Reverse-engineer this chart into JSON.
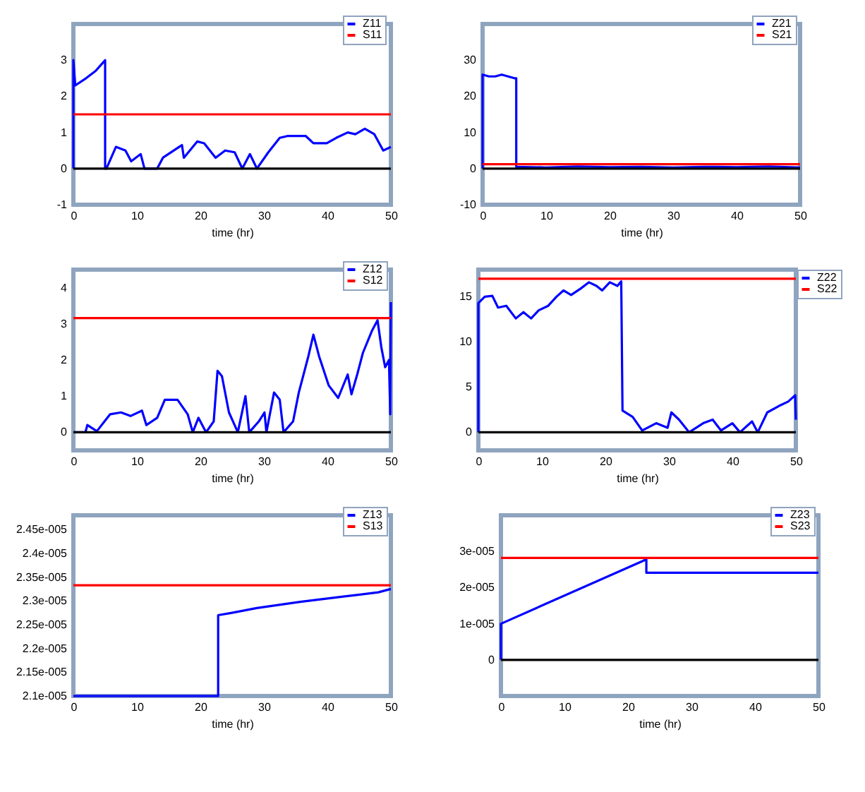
{
  "chart_data": [
    {
      "type": "line",
      "xlabel": "time (hr)",
      "xlim": [
        0,
        50
      ],
      "xticks": [
        0,
        10,
        20,
        30,
        40,
        50
      ],
      "ylim": [
        -1,
        4
      ],
      "yticks": [
        -1,
        0,
        1,
        2,
        3
      ],
      "legend": "top right",
      "ref_lines": [
        {
          "axis": "y",
          "value": 0,
          "color": "#000000"
        }
      ],
      "series": [
        {
          "name": "Z11",
          "color": "#0000ff",
          "x": [
            0,
            0,
            0.3,
            2,
            3.5,
            4.5,
            5,
            5,
            5.2,
            6.7,
            8.2,
            9.1,
            10.6,
            11.2,
            13.2,
            14.1,
            17.1,
            17.4,
            19.5,
            20.6,
            22.4,
            23.9,
            25.4,
            26.6,
            27.8,
            28.9,
            30.7,
            32.5,
            33.7,
            36.6,
            37.8,
            39.9,
            41.4,
            43.2,
            44.4,
            45.9,
            47.4,
            48.8,
            50
          ],
          "values": [
            0,
            3,
            2.3,
            2.5,
            2.7,
            2.9,
            3,
            0,
            0,
            0.6,
            0.5,
            0.2,
            0.4,
            0,
            0,
            0.3,
            0.65,
            0.3,
            0.75,
            0.7,
            0.3,
            0.5,
            0.45,
            0,
            0.4,
            0,
            0.45,
            0.85,
            0.9,
            0.9,
            0.7,
            0.7,
            0.85,
            1,
            0.95,
            1.1,
            0.95,
            0.5,
            0.6
          ]
        },
        {
          "name": "S11",
          "color": "#ff0000",
          "x": [
            0,
            50
          ],
          "values": [
            1.5,
            1.5
          ]
        }
      ]
    },
    {
      "type": "line",
      "xlabel": "time (hr)",
      "xlim": [
        0,
        50
      ],
      "xticks": [
        0,
        10,
        20,
        30,
        40,
        50
      ],
      "ylim": [
        -10,
        40
      ],
      "yticks": [
        -10,
        0,
        10,
        20,
        30
      ],
      "legend": "top right",
      "ref_lines": [
        {
          "axis": "y",
          "value": 0,
          "color": "#000000"
        }
      ],
      "series": [
        {
          "name": "Z21",
          "color": "#0000ff",
          "x": [
            0,
            0,
            1,
            2,
            3,
            4,
            5,
            5.3,
            5.3,
            10,
            15,
            20,
            25,
            30,
            35,
            40,
            45,
            50
          ],
          "values": [
            0,
            26,
            25.5,
            25.5,
            26,
            25.5,
            25,
            25,
            0.5,
            0.3,
            0.6,
            0.4,
            0.5,
            0.3,
            0.5,
            0.4,
            0.6,
            0.3
          ]
        },
        {
          "name": "S21",
          "color": "#ff0000",
          "x": [
            0,
            50
          ],
          "values": [
            1.2,
            1.2
          ]
        }
      ]
    },
    {
      "type": "line",
      "xlabel": "time (hr)",
      "xlim": [
        0,
        50
      ],
      "xticks": [
        0,
        10,
        20,
        30,
        40,
        50
      ],
      "ylim": [
        -0.5,
        4.5
      ],
      "yticks": [
        0,
        1,
        2,
        3,
        4
      ],
      "legend": "top right",
      "ref_lines": [
        {
          "axis": "y",
          "value": 0,
          "color": "#000000"
        }
      ],
      "series": [
        {
          "name": "Z12",
          "color": "#0000ff",
          "x": [
            0,
            1.9,
            2.2,
            3.7,
            4.9,
            5.8,
            7.5,
            9,
            10.8,
            11.5,
            13.2,
            14.4,
            16.4,
            18,
            18.8,
            19.7,
            20.9,
            22.1,
            22.7,
            23.4,
            24.5,
            25.9,
            27.1,
            27.7,
            29.2,
            30.1,
            30.4,
            31.6,
            32.5,
            33.1,
            34.6,
            35.5,
            37,
            37.8,
            38.7,
            40.2,
            41.7,
            43.2,
            43.8,
            44.7,
            45.6,
            47,
            47.9,
            48.5,
            49.1,
            49.7,
            49.9,
            50
          ],
          "values": [
            0,
            0,
            0.2,
            0.03,
            0.3,
            0.5,
            0.55,
            0.45,
            0.6,
            0.2,
            0.4,
            0.9,
            0.9,
            0.5,
            0,
            0.4,
            0,
            0.3,
            1.7,
            1.55,
            0.55,
            0,
            1,
            0,
            0.3,
            0.55,
            0,
            1.1,
            0.9,
            0,
            0.3,
            1.1,
            2.1,
            2.7,
            2.1,
            1.3,
            0.95,
            1.6,
            1.05,
            1.6,
            2.2,
            2.8,
            3.1,
            2.35,
            1.8,
            2,
            0.5,
            3.6
          ]
        },
        {
          "name": "S12",
          "color": "#ff0000",
          "x": [
            0,
            50
          ],
          "values": [
            3.16,
            3.16
          ]
        }
      ]
    },
    {
      "type": "line",
      "xlabel": "time (hr)",
      "xlim": [
        0,
        50
      ],
      "xticks": [
        0,
        10,
        20,
        30,
        40,
        50
      ],
      "ylim": [
        -2,
        18
      ],
      "yticks": [
        0,
        5,
        10,
        15
      ],
      "legend": "right",
      "ref_lines": [
        {
          "axis": "y",
          "value": 0,
          "color": "#000000"
        }
      ],
      "series": [
        {
          "name": "Z22",
          "color": "#0000ff",
          "x": [
            0,
            0,
            1,
            2.2,
            3.1,
            4.4,
            5.9,
            7.1,
            8.3,
            9.5,
            11,
            12.3,
            13.4,
            14.6,
            16.1,
            17.4,
            18.6,
            19.5,
            20.7,
            21.9,
            22.5,
            22.7,
            24.3,
            25.8,
            28,
            29.8,
            30.4,
            31.6,
            33.2,
            35.4,
            36.9,
            38.2,
            40,
            41.2,
            43.1,
            44,
            45.5,
            47.3,
            48.8,
            49.9,
            50
          ],
          "values": [
            0,
            14.3,
            15,
            15.1,
            13.8,
            14,
            12.6,
            13.3,
            12.6,
            13.5,
            14,
            15,
            15.7,
            15.2,
            15.9,
            16.6,
            16.2,
            15.7,
            16.6,
            16.2,
            16.7,
            2.4,
            1.7,
            0.2,
            1,
            0.5,
            2.2,
            1.4,
            0,
            1,
            1.4,
            0.2,
            1,
            0,
            1.2,
            0,
            2.2,
            2.9,
            3.4,
            4.1,
            1.4
          ]
        },
        {
          "name": "S22",
          "color": "#ff0000",
          "x": [
            0,
            50
          ],
          "values": [
            17,
            17
          ]
        }
      ]
    },
    {
      "type": "line",
      "xlabel": "time (hr)",
      "xlim": [
        0,
        50
      ],
      "xticks": [
        0,
        10,
        20,
        30,
        40,
        50
      ],
      "ylim": [
        2.1e-05,
        2.48e-05
      ],
      "yticks": [
        {
          "value": 2.1e-05,
          "label": "2.1e-005"
        },
        {
          "value": 2.15e-05,
          "label": "2.15e-005"
        },
        {
          "value": 2.2e-05,
          "label": "2.2e-005"
        },
        {
          "value": 2.25e-05,
          "label": "2.25e-005"
        },
        {
          "value": 2.3e-05,
          "label": "2.3e-005"
        },
        {
          "value": 2.35e-05,
          "label": "2.35e-005"
        },
        {
          "value": 2.4e-05,
          "label": "2.4e-005"
        },
        {
          "value": 2.45e-05,
          "label": "2.45e-005"
        }
      ],
      "legend": "top right",
      "series": [
        {
          "name": "Z13",
          "color": "#0000ff",
          "x": [
            0,
            22.8,
            22.8,
            25,
            28.9,
            35.7,
            42.5,
            48,
            50
          ],
          "values": [
            2.1e-05,
            2.1e-05,
            2.27e-05,
            2.275e-05,
            2.285e-05,
            2.298e-05,
            2.309e-05,
            2.318e-05,
            2.325e-05
          ]
        },
        {
          "name": "S13",
          "color": "#ff0000",
          "x": [
            0,
            50
          ],
          "values": [
            2.333e-05,
            2.333e-05
          ]
        }
      ]
    },
    {
      "type": "line",
      "xlabel": "time (hr)",
      "xlim": [
        0,
        50
      ],
      "xticks": [
        0,
        10,
        20,
        30,
        40,
        50
      ],
      "ylim": [
        -1e-05,
        4e-05
      ],
      "yticks": [
        0,
        {
          "value": 1e-05,
          "label": "1e-005"
        },
        {
          "value": 2e-05,
          "label": "2e-005"
        },
        {
          "value": 3e-05,
          "label": "3e-005"
        }
      ],
      "legend": "top right",
      "ref_lines": [
        {
          "axis": "y",
          "value": 0,
          "color": "#000000"
        }
      ],
      "series": [
        {
          "name": "Z23",
          "color": "#0000ff",
          "x": [
            0,
            0,
            22.9,
            22.9,
            50
          ],
          "values": [
            0,
            1e-05,
            2.78e-05,
            2.41e-05,
            2.41e-05
          ]
        },
        {
          "name": "S23",
          "color": "#ff0000",
          "x": [
            0,
            50
          ],
          "values": [
            2.82e-05,
            2.82e-05
          ]
        }
      ]
    }
  ]
}
